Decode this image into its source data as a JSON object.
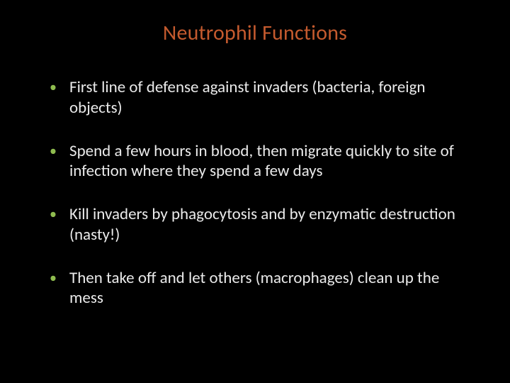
{
  "slide": {
    "title": "Neutrophil Functions",
    "title_color": "#c45a2e",
    "bullet_color": "#8fbc4f",
    "text_color": "#eaeaea",
    "background_color": "#000000",
    "title_fontsize": 30,
    "body_fontsize": 23,
    "bullets": [
      "First line of defense against invaders (bacteria, foreign objects)",
      "Spend a few hours in blood, then migrate quickly to site of infection where they spend a few days",
      "Kill invaders by phagocytosis and by enzymatic destruction (nasty!)",
      "Then take off and let others (macrophages) clean up the mess"
    ]
  }
}
